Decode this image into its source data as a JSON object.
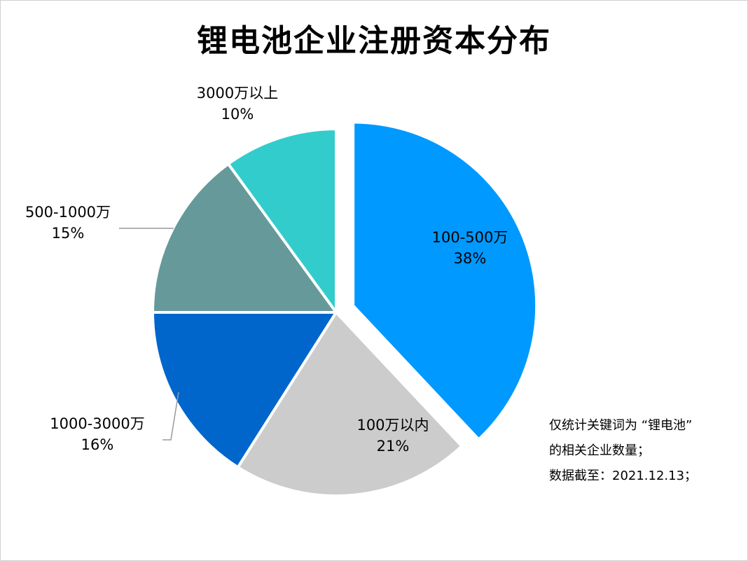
{
  "chart_data": {
    "type": "pie",
    "title": "锂电池企业注册资本分布",
    "slices": [
      {
        "label": "100-500万",
        "value": 38,
        "pct_label": "38%",
        "color": "#0099ff",
        "exploded": true
      },
      {
        "label": "100万以内",
        "value": 21,
        "pct_label": "21%",
        "color": "#cccccc"
      },
      {
        "label": "1000-3000万",
        "value": 16,
        "pct_label": "16%",
        "color": "#0066cc"
      },
      {
        "label": "500-1000万",
        "value": 15,
        "pct_label": "15%",
        "color": "#669999"
      },
      {
        "label": "3000万以上",
        "value": 10,
        "pct_label": "10%",
        "color": "#33cccc"
      }
    ],
    "start": "top",
    "direction": "clockwise"
  },
  "notes": [
    "仅统计关键词为 “锂电池”",
    "的相关企业数量；",
    "数据截至：2021.12.13；"
  ]
}
